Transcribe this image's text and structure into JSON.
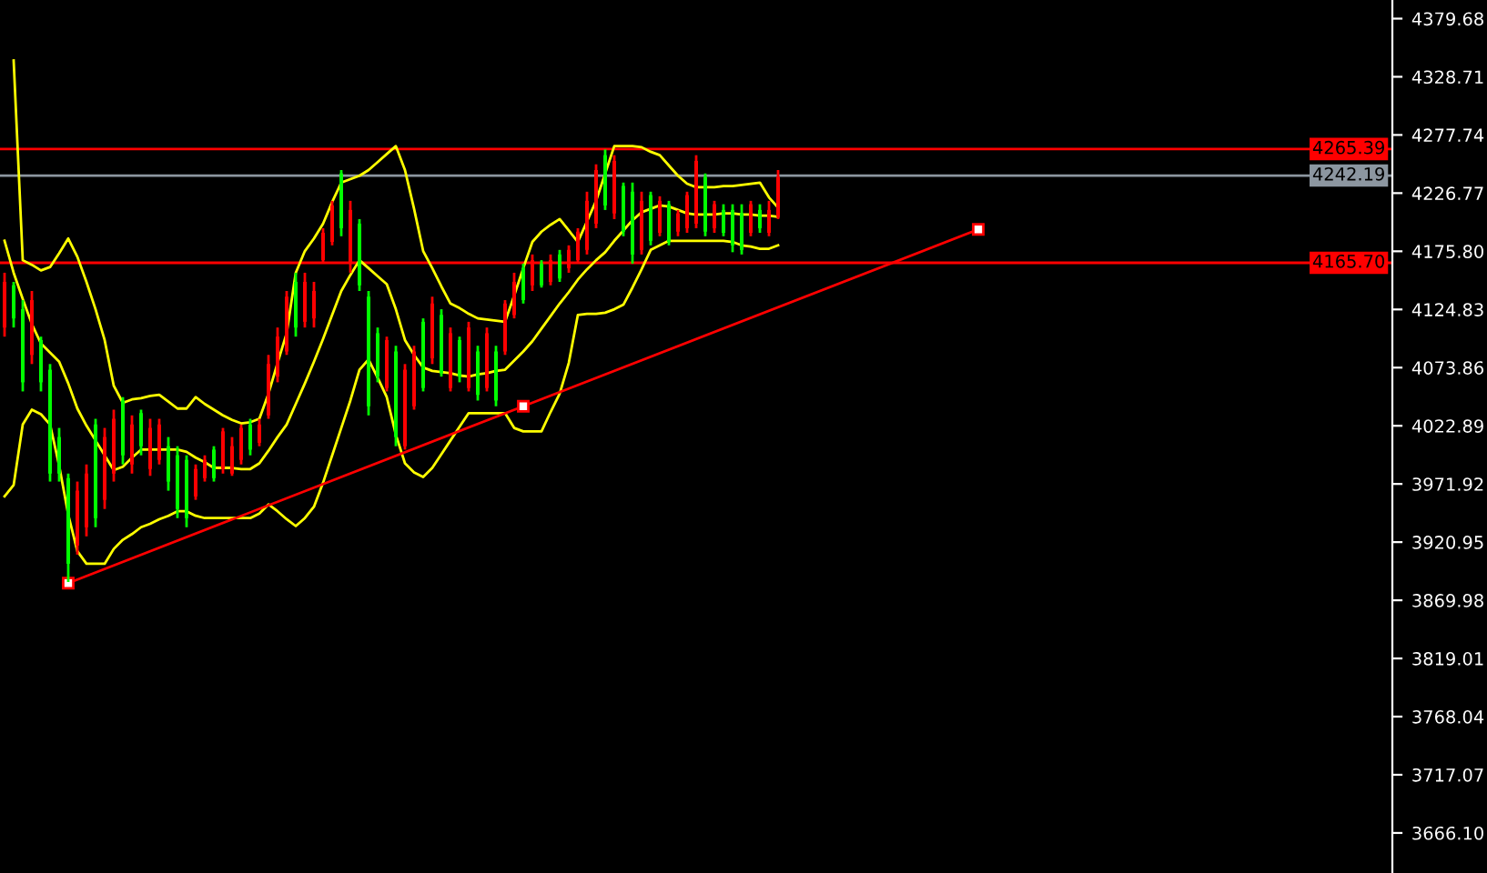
{
  "chart_data": {
    "type": "candlestick",
    "categories": [
      null,
      null,
      null,
      null,
      null,
      null,
      null,
      null,
      null,
      null,
      null,
      null,
      null,
      null,
      null,
      null,
      null,
      null,
      null,
      null,
      null,
      null,
      null,
      null,
      null,
      null,
      null,
      null,
      null,
      null,
      null,
      null,
      null,
      null,
      null,
      null,
      null,
      null,
      null,
      null,
      null,
      null,
      null,
      null,
      null,
      null,
      null,
      null,
      null,
      null,
      null,
      null,
      null,
      null,
      null,
      null,
      null,
      null,
      null,
      null,
      null,
      null,
      null,
      null,
      null,
      null,
      null,
      null,
      null,
      null,
      null,
      null,
      null,
      null,
      null,
      null,
      null,
      null,
      null,
      null,
      null,
      null,
      null,
      null,
      null,
      null,
      null,
      null,
      null,
      null,
      null,
      null,
      null,
      null,
      null,
      null,
      null,
      null,
      null,
      null,
      null,
      null,
      null,
      null,
      null,
      null,
      null,
      null,
      null,
      null,
      null,
      null,
      null,
      null,
      null,
      null,
      null,
      null,
      null,
      null,
      null,
      null,
      null,
      null,
      null,
      null,
      null,
      null,
      null,
      null,
      null,
      null,
      null,
      null,
      null,
      null,
      null,
      null,
      null,
      null,
      null,
      null,
      null,
      null,
      null,
      null,
      null,
      null,
      null,
      null,
      null,
      null,
      null
    ],
    "ohlc": [
      [
        4109,
        4157,
        4101,
        4149
      ],
      [
        4146,
        4149,
        4109,
        4117
      ],
      [
        4125,
        4133,
        4053,
        4061
      ],
      [
        4085,
        4141,
        4077,
        4133
      ],
      [
        4098,
        4101,
        4053,
        4061
      ],
      [
        4072,
        4077,
        3974,
        3981
      ],
      [
        4013,
        4021,
        3974,
        3981
      ],
      [
        3977,
        3981,
        3886,
        3902
      ],
      [
        3918,
        3974,
        3910,
        3966
      ],
      [
        3934,
        3989,
        3926,
        3981
      ],
      [
        4024,
        4029,
        3934,
        3942
      ],
      [
        3958,
        4021,
        3950,
        4013
      ],
      [
        3981,
        4037,
        3974,
        4029
      ],
      [
        4045,
        4048,
        3989,
        3997
      ],
      [
        3989,
        4032,
        3981,
        4024
      ],
      [
        4034,
        4037,
        3997,
        4005
      ],
      [
        3985,
        4029,
        3979,
        4021
      ],
      [
        3993,
        4029,
        3989,
        4024
      ],
      [
        4005,
        4013,
        3966,
        3974
      ],
      [
        3997,
        4005,
        3942,
        3950
      ],
      [
        3993,
        3997,
        3934,
        3942
      ],
      [
        3961,
        3989,
        3958,
        3985
      ],
      [
        3977,
        3997,
        3974,
        3993
      ],
      [
        4002,
        4005,
        3974,
        3977
      ],
      [
        3985,
        4021,
        3981,
        4018
      ],
      [
        3981,
        4013,
        3979,
        4005
      ],
      [
        3993,
        4024,
        3989,
        4021
      ],
      [
        4024,
        4029,
        3997,
        4002
      ],
      [
        4008,
        4029,
        4005,
        4024
      ],
      [
        4032,
        4085,
        4029,
        4077
      ],
      [
        4066,
        4109,
        4061,
        4101
      ],
      [
        4088,
        4141,
        4085,
        4136
      ],
      [
        4149,
        4157,
        4101,
        4109
      ],
      [
        4114,
        4157,
        4109,
        4149
      ],
      [
        4117,
        4149,
        4109,
        4141
      ],
      [
        4168,
        4196,
        4165,
        4192
      ],
      [
        4184,
        4220,
        4181,
        4216
      ],
      [
        4244,
        4247,
        4189,
        4196
      ],
      [
        4165,
        4220,
        4157,
        4212
      ],
      [
        4200,
        4204,
        4141,
        4146
      ],
      [
        4136,
        4141,
        4032,
        4040
      ],
      [
        4104,
        4109,
        4061,
        4066
      ],
      [
        4056,
        4101,
        4053,
        4098
      ],
      [
        4088,
        4093,
        4005,
        4013
      ],
      [
        4005,
        4077,
        4002,
        4072
      ],
      [
        4040,
        4093,
        4037,
        4088
      ],
      [
        4114,
        4117,
        4053,
        4056
      ],
      [
        4082,
        4136,
        4077,
        4130
      ],
      [
        4120,
        4125,
        4066,
        4069
      ],
      [
        4056,
        4109,
        4053,
        4104
      ],
      [
        4098,
        4101,
        4061,
        4066
      ],
      [
        4056,
        4114,
        4053,
        4109
      ],
      [
        4088,
        4093,
        4045,
        4050
      ],
      [
        4056,
        4109,
        4053,
        4104
      ],
      [
        4088,
        4093,
        4040,
        4045
      ],
      [
        4088,
        4133,
        4085,
        4130
      ],
      [
        4120,
        4157,
        4117,
        4149
      ],
      [
        4161,
        4165,
        4130,
        4133
      ],
      [
        4146,
        4173,
        4141,
        4168
      ],
      [
        4165,
        4168,
        4144,
        4146
      ],
      [
        4149,
        4173,
        4146,
        4168
      ],
      [
        4173,
        4177,
        4149,
        4152
      ],
      [
        4161,
        4181,
        4157,
        4177
      ],
      [
        4168,
        4196,
        4165,
        4193
      ],
      [
        4177,
        4228,
        4173,
        4220
      ],
      [
        4200,
        4252,
        4196,
        4247
      ],
      [
        4260,
        4265,
        4212,
        4216
      ],
      [
        4209,
        4260,
        4204,
        4255
      ],
      [
        4233,
        4236,
        4189,
        4193
      ],
      [
        4228,
        4236,
        4165,
        4173
      ],
      [
        4177,
        4228,
        4173,
        4220
      ],
      [
        4225,
        4228,
        4181,
        4185
      ],
      [
        4192,
        4224,
        4189,
        4220
      ],
      [
        4217,
        4220,
        4181,
        4184
      ],
      [
        4193,
        4212,
        4189,
        4209
      ],
      [
        4196,
        4228,
        4192,
        4225
      ],
      [
        4200,
        4260,
        4196,
        4255
      ],
      [
        4241,
        4244,
        4189,
        4193
      ],
      [
        4196,
        4220,
        4192,
        4217
      ],
      [
        4212,
        4217,
        4189,
        4192
      ],
      [
        4212,
        4217,
        4175,
        4181
      ],
      [
        4209,
        4217,
        4173,
        4177
      ],
      [
        4192,
        4220,
        4189,
        4217
      ],
      [
        4212,
        4217,
        4192,
        4196
      ],
      [
        4192,
        4220,
        4189,
        4212
      ],
      [
        4206,
        4247,
        4204,
        4241
      ],
      null,
      null,
      null,
      null,
      null,
      null,
      null,
      null,
      null,
      null,
      null,
      null,
      null,
      null,
      null,
      null,
      null,
      null,
      null,
      null,
      null,
      null,
      null,
      null,
      null,
      null,
      null,
      null,
      null,
      null,
      null,
      null,
      null,
      null,
      null,
      null,
      null,
      null,
      null,
      null,
      null,
      null,
      null,
      null,
      null,
      null,
      null,
      null,
      null,
      null,
      null,
      null,
      null,
      null,
      null,
      null,
      null,
      null,
      null,
      null,
      null,
      null,
      null,
      null,
      null,
      null,
      null
    ],
    "colors": [
      "#ff0000",
      "#00ff00",
      "#00ff00",
      "#ff0000",
      "#00ff00",
      "#00ff00",
      "#00ff00",
      "#00ff00",
      "#ff0000",
      "#ff0000",
      "#00ff00",
      "#ff0000",
      "#ff0000",
      "#00ff00",
      "#ff0000",
      "#00ff00",
      "#ff0000",
      "#ff0000",
      "#00ff00",
      "#00ff00",
      "#00ff00",
      "#ff0000",
      "#ff0000",
      "#00ff00",
      "#ff0000",
      "#ff0000",
      "#ff0000",
      "#00ff00",
      "#ff0000",
      "#ff0000",
      "#ff0000",
      "#ff0000",
      "#00ff00",
      "#ff0000",
      "#ff0000",
      "#ff0000",
      "#ff0000",
      "#00ff00",
      "#ff0000",
      "#00ff00",
      "#00ff00",
      "#00ff00",
      "#ff0000",
      "#00ff00",
      "#ff0000",
      "#ff0000",
      "#00ff00",
      "#ff0000",
      "#00ff00",
      "#ff0000",
      "#00ff00",
      "#ff0000",
      "#00ff00",
      "#ff0000",
      "#00ff00",
      "#ff0000",
      "#ff0000",
      "#00ff00",
      "#ff0000",
      "#00ff00",
      "#ff0000",
      "#00ff00",
      "#ff0000",
      "#ff0000",
      "#ff0000",
      "#ff0000",
      "#00ff00",
      "#ff0000",
      "#00ff00",
      "#00ff00",
      "#ff0000",
      "#00ff00",
      "#ff0000",
      "#00ff00",
      "#ff0000",
      "#ff0000",
      "#ff0000",
      "#00ff00",
      "#ff0000",
      "#00ff00",
      "#00ff00",
      "#00ff00",
      "#ff0000",
      "#00ff00",
      "#ff0000",
      "#ff0000",
      null,
      null,
      null,
      null,
      null,
      null,
      null,
      null,
      null,
      null,
      null,
      null,
      null,
      null,
      null,
      null,
      null,
      null,
      null,
      null,
      null,
      null,
      null,
      null,
      null,
      null,
      null,
      null,
      null,
      null,
      null,
      null,
      null,
      null,
      null,
      null,
      null,
      null,
      null,
      null,
      null,
      null,
      null,
      null,
      null,
      null,
      null,
      null,
      null,
      null,
      null,
      null,
      null,
      null,
      null,
      null,
      null,
      null,
      null,
      null,
      null,
      null,
      null,
      null,
      null,
      null,
      null
    ],
    "series": [
      {
        "type": "line",
        "color": "#ffff00",
        "values": [
          null,
          4343,
          4168,
          4164,
          4159,
          4162,
          4174,
          4187,
          4171,
          4149,
          4125,
          4098,
          4058,
          4043,
          4046,
          4047,
          4049,
          4050,
          4044,
          4038,
          4038,
          4048,
          4042,
          4037,
          4032,
          4028,
          4025,
          4026,
          4029,
          4051,
          4078,
          4104,
          4157,
          4176,
          4187,
          4200,
          4219,
          4236,
          4239,
          4242,
          4247,
          4254,
          4261,
          4268,
          4247,
          4213,
          4176,
          4161,
          4145,
          4130,
          4126,
          4121,
          4117,
          4116,
          4115,
          4114,
          4137,
          4161,
          4184,
          4193,
          4199,
          4204,
          4194,
          4184,
          4202,
          4220,
          4244,
          4268,
          4268,
          4268,
          4267,
          4263,
          4260,
          4251,
          4242,
          4235,
          4232,
          4232,
          4232,
          4233,
          4233,
          4234,
          4235,
          4236,
          4223,
          4214,
          null,
          null,
          null,
          null,
          null,
          null,
          null,
          null,
          null,
          null,
          null,
          null,
          null,
          null,
          null,
          null,
          null,
          null,
          null,
          null,
          null,
          null,
          null,
          null,
          null,
          null,
          null,
          null,
          null,
          null,
          null,
          null,
          null,
          null,
          null,
          null,
          null,
          null,
          null,
          null,
          null,
          null,
          null,
          null,
          null,
          null,
          null,
          null,
          null,
          null,
          null,
          null,
          null,
          null,
          null,
          null,
          null,
          null,
          null,
          null,
          null,
          null,
          null,
          null,
          null,
          null,
          null
        ]
      },
      {
        "type": "line",
        "color": "#ffff00",
        "values": [
          4185,
          4157,
          4134,
          4112,
          4095,
          4087,
          4079,
          4060,
          4038,
          4023,
          4010,
          3997,
          3984,
          3987,
          3995,
          4002,
          4002,
          4002,
          4002,
          4002,
          4000,
          3995,
          3991,
          3986,
          3986,
          3986,
          3985,
          3985,
          3990,
          4001,
          4013,
          4024,
          4042,
          4060,
          4079,
          4099,
          4120,
          4141,
          4155,
          4168,
          4161,
          4154,
          4147,
          4125,
          4098,
          4085,
          4074,
          4071,
          4070,
          4069,
          4067,
          4066,
          4068,
          4069,
          4071,
          4072,
          4080,
          4088,
          4097,
          4108,
          4119,
          4130,
          4140,
          4151,
          4160,
          4168,
          4175,
          4185,
          4194,
          4203,
          4210,
          4213,
          4216,
          4215,
          4212,
          4209,
          4208,
          4208,
          4208,
          4209,
          4209,
          4208,
          4208,
          4207,
          4207,
          4206,
          null,
          null,
          null,
          null,
          null,
          null,
          null,
          null,
          null,
          null,
          null,
          null,
          null,
          null,
          null,
          null,
          null,
          null,
          null,
          null,
          null,
          null,
          null,
          null,
          null,
          null,
          null,
          null,
          null,
          null,
          null,
          null,
          null,
          null,
          null,
          null,
          null,
          null,
          null,
          null,
          null,
          null,
          null,
          null,
          null,
          null,
          null,
          null,
          null,
          null,
          null,
          null,
          null,
          null,
          null,
          null,
          null,
          null,
          null,
          null,
          null,
          null,
          null,
          null,
          null,
          null,
          null
        ]
      },
      {
        "type": "line",
        "color": "#ffff00",
        "values": [
          3961,
          3971,
          4024,
          4037,
          4033,
          4024,
          3988,
          3945,
          3913,
          3902,
          3902,
          3902,
          3915,
          3923,
          3928,
          3934,
          3937,
          3941,
          3944,
          3948,
          3948,
          3944,
          3942,
          3942,
          3942,
          3942,
          3942,
          3942,
          3946,
          3954,
          3948,
          3941,
          3935,
          3942,
          3952,
          3973,
          3997,
          4021,
          4045,
          4072,
          4081,
          4065,
          4048,
          4015,
          3990,
          3982,
          3978,
          3986,
          3998,
          4010,
          4022,
          4034,
          4034,
          4034,
          4034,
          4034,
          4021,
          4018,
          4018,
          4018,
          4035,
          4051,
          4078,
          4120,
          4121,
          4121,
          4122,
          4125,
          4129,
          4144,
          4160,
          4177,
          4181,
          4185,
          4185,
          4185,
          4185,
          4185,
          4185,
          4185,
          4184,
          4181,
          4180,
          4178,
          4178,
          4181,
          null,
          null,
          null,
          null,
          null,
          null,
          null,
          null,
          null,
          null,
          null,
          null,
          null,
          null,
          null,
          null,
          null,
          null,
          null,
          null,
          null,
          null,
          null,
          null,
          null,
          null,
          null,
          null,
          null,
          null,
          null,
          null,
          null,
          null,
          null,
          null,
          null,
          null,
          null,
          null,
          null,
          null,
          null,
          null,
          null,
          null,
          null,
          null,
          null,
          null,
          null,
          null,
          null,
          null,
          null,
          null,
          null,
          null,
          null,
          null,
          null,
          null,
          null,
          null,
          null,
          null,
          null
        ]
      },
      {
        "type": "line",
        "color": "#ff0000",
        "marker": "square",
        "values": [
          null,
          null,
          null,
          null,
          null,
          null,
          null,
          3885,
          null,
          null,
          null,
          null,
          null,
          null,
          null,
          null,
          null,
          null,
          null,
          null,
          null,
          null,
          null,
          null,
          null,
          null,
          null,
          null,
          null,
          null,
          null,
          null,
          null,
          null,
          null,
          null,
          null,
          null,
          null,
          null,
          null,
          null,
          null,
          null,
          null,
          null,
          null,
          null,
          null,
          null,
          null,
          null,
          null,
          null,
          null,
          null,
          null,
          4040,
          null,
          null,
          null,
          null,
          null,
          null,
          null,
          null,
          null,
          null,
          null,
          null,
          null,
          null,
          null,
          null,
          null,
          null,
          null,
          null,
          null,
          null,
          null,
          null,
          null,
          null,
          null,
          null,
          null,
          null,
          null,
          null,
          null,
          null,
          null,
          null,
          null,
          null,
          null,
          null,
          null,
          null,
          null,
          null,
          null,
          null,
          null,
          null,
          null,
          4195,
          null,
          null,
          null,
          null,
          null,
          null,
          null,
          null,
          null,
          null,
          null,
          null,
          null,
          null,
          null,
          null,
          null,
          null,
          null,
          null,
          null,
          null,
          null,
          null,
          null,
          null,
          null,
          null,
          null,
          null,
          null,
          null,
          null,
          null,
          null,
          null,
          null,
          null,
          null,
          null,
          null,
          null,
          null,
          null,
          null
        ]
      }
    ],
    "ref_lines": [
      {
        "axis": "y",
        "value": 4265.39,
        "label": "4265.39",
        "color": "#ff0000"
      },
      {
        "axis": "y",
        "value": 4242.19,
        "label": "4242.19",
        "color": "#8c96a0"
      },
      {
        "axis": "y",
        "value": 4165.7,
        "label": "4165.70",
        "color": "#ff0000"
      }
    ],
    "ylim": [
      3631,
      4396
    ],
    "yticks": [
      4379.68,
      4328.71,
      4277.74,
      4226.77,
      {
        "value": 4175.8,
        "label": "4175.80"
      },
      4124.83,
      4073.86,
      4022.89,
      3971.92,
      3920.95,
      3869.98,
      3819.01,
      3768.04,
      3717.07,
      {
        "value": 3666.1,
        "label": "3666.10"
      }
    ],
    "tick_labels": "y"
  }
}
